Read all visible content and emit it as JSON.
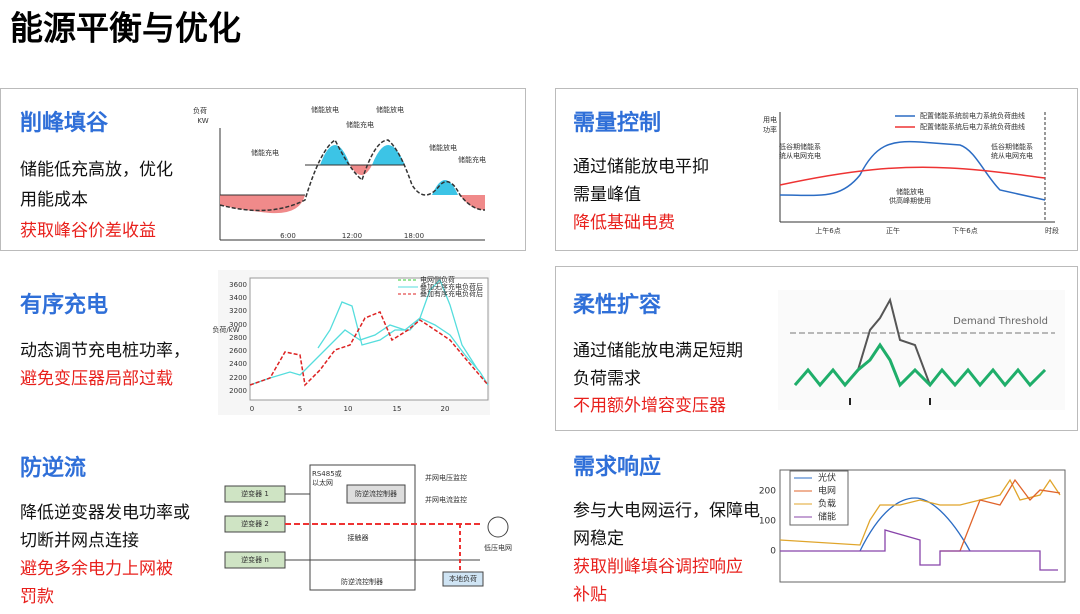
{
  "title": "能源平衡与优化",
  "panels": [
    {
      "title": "削峰填谷",
      "body": [
        "储能低充高放，优化",
        "用能成本"
      ],
      "highlight": [
        "获取峰谷价差收益"
      ],
      "figure": {
        "labels": [
          "负荷",
          "KW",
          "储能放电",
          "储能充电",
          "储能放电",
          "储能充电",
          "储能放电",
          "储能充电",
          "6:00",
          "12:00",
          "18:00"
        ]
      }
    },
    {
      "title": "需量控制",
      "body": [
        "通过储能放电平抑",
        "需量峰值"
      ],
      "highlight": [
        "降低基础电费"
      ],
      "figure": {
        "labels": [
          "配置储能系统前电力系统负荷曲线",
          "配置储能系统后电力系统负荷曲线",
          "用电",
          "功率",
          "低谷期储能系",
          "统从电网充电",
          "储能放电",
          "供高峰期使用",
          "低谷期储能系",
          "统从电网充电",
          "上午6点",
          "正午",
          "下午6点",
          "时段"
        ]
      }
    },
    {
      "title": "有序充电",
      "body": [
        "动态调节充电桩功率，"
      ],
      "highlight": [
        "避免变压器局部过载"
      ],
      "figure": {
        "labels": [
          "电网侧负荷",
          "叠加无序充电负荷后",
          "叠加有序充电负荷后",
          "负荷/kW",
          "3600",
          "3400",
          "3200",
          "3000",
          "2800",
          "2600",
          "2400",
          "2200",
          "2000",
          "0",
          "5",
          "10",
          "15",
          "20"
        ]
      }
    },
    {
      "title": "柔性扩容",
      "body": [
        "通过储能放电满足短期",
        "负荷需求"
      ],
      "highlight": [
        "不用额外增容变压器"
      ],
      "figure": {
        "labels": [
          "Demand Threshold"
        ]
      }
    },
    {
      "title": "防逆流",
      "body": [
        "降低逆变器发电功率或",
        "切断并网点连接"
      ],
      "highlight": [
        "避免多余电力上网被",
        "罚款"
      ],
      "figure": {
        "labels": [
          "逆变器 1",
          "逆变器 2",
          "逆变器 n",
          "RS485或",
          "以太网",
          "防逆流控制器",
          "并网电压监控",
          "并网电流监控",
          "接触器",
          "低压电网",
          "本地负荷",
          "防逆流控制器"
        ]
      }
    },
    {
      "title": "需求响应",
      "body": [
        "参与大电网运行，保障电",
        "网稳定"
      ],
      "highlight": [
        "获取削峰填谷调控响应",
        "补贴"
      ],
      "figure": {
        "labels": [
          "光伏",
          "电网",
          "负载",
          "储能",
          "200",
          "100",
          "0"
        ]
      }
    }
  ]
}
